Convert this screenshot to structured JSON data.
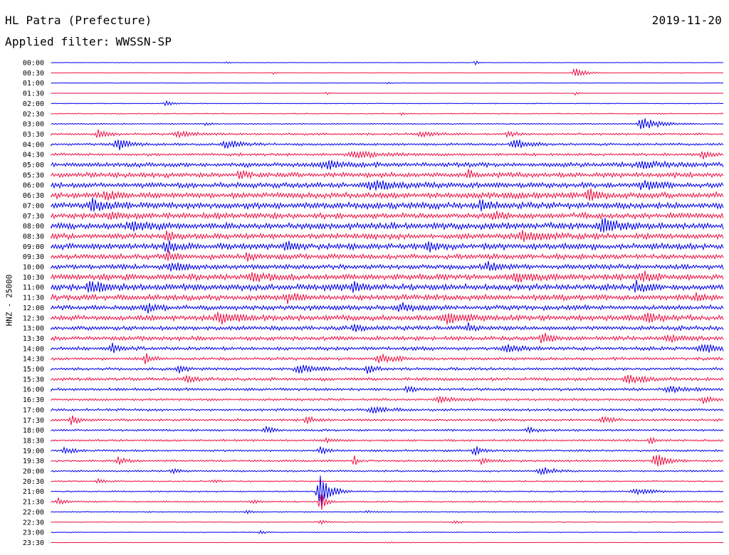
{
  "header": {
    "station": "HL Patra (Prefecture)",
    "date": "2019-11-20",
    "filter_label": "Applied filter:",
    "filter_value": "WWSSN-SP"
  },
  "axis": {
    "channel_label": "HNZ - 25000"
  },
  "colors": {
    "even_trace": "#0000ee",
    "odd_trace": "#ee1144",
    "background": "#ffffff"
  },
  "chart_data": {
    "type": "line",
    "title": "HL Patra (Prefecture)",
    "subtitle": "2019-11-20",
    "ylabel": "HNZ - 25000",
    "xlabel": "",
    "grid": false,
    "series": [
      {
        "label": "00:00",
        "noise": 0.3,
        "events": [
          {
            "x": 0.26,
            "a": 2,
            "w": 0.004
          },
          {
            "x": 0.63,
            "a": 4,
            "w": 0.004
          }
        ]
      },
      {
        "label": "00:30",
        "noise": 0.4,
        "events": [
          {
            "x": 0.78,
            "a": 7,
            "w": 0.012
          },
          {
            "x": 0.33,
            "a": 2,
            "w": 0.004
          }
        ]
      },
      {
        "label": "01:00",
        "noise": 0.3,
        "events": [
          {
            "x": 0.5,
            "a": 1.5,
            "w": 0.004
          }
        ]
      },
      {
        "label": "01:30",
        "noise": 0.3,
        "events": [
          {
            "x": 0.41,
            "a": 2,
            "w": 0.004
          },
          {
            "x": 0.78,
            "a": 3,
            "w": 0.004
          }
        ]
      },
      {
        "label": "02:00",
        "noise": 0.5,
        "events": [
          {
            "x": 0.17,
            "a": 4,
            "w": 0.008
          }
        ]
      },
      {
        "label": "02:30",
        "noise": 0.6,
        "events": [
          {
            "x": 0.52,
            "a": 2,
            "w": 0.004
          }
        ]
      },
      {
        "label": "03:00",
        "noise": 0.7,
        "events": [
          {
            "x": 0.23,
            "a": 2.5,
            "w": 0.006
          },
          {
            "x": 0.88,
            "a": 9,
            "w": 0.02
          }
        ]
      },
      {
        "label": "03:30",
        "noise": 1.2,
        "events": [
          {
            "x": 0.07,
            "a": 8,
            "w": 0.01
          },
          {
            "x": 0.19,
            "a": 4,
            "w": 0.02
          },
          {
            "x": 0.55,
            "a": 3,
            "w": 0.02
          },
          {
            "x": 0.68,
            "a": 4,
            "w": 0.01
          }
        ]
      },
      {
        "label": "04:00",
        "noise": 1.4,
        "events": [
          {
            "x": 0.1,
            "a": 8,
            "w": 0.015
          },
          {
            "x": 0.26,
            "a": 7,
            "w": 0.015
          },
          {
            "x": 0.69,
            "a": 8,
            "w": 0.015
          }
        ]
      },
      {
        "label": "04:30",
        "noise": 1.6,
        "events": [
          {
            "x": 0.45,
            "a": 5,
            "w": 0.03
          },
          {
            "x": 0.97,
            "a": 6,
            "w": 0.01
          }
        ]
      },
      {
        "label": "05:00",
        "noise": 2.6,
        "events": [
          {
            "x": 0.41,
            "a": 5,
            "w": 0.02
          },
          {
            "x": 0.88,
            "a": 5,
            "w": 0.02
          }
        ]
      },
      {
        "label": "05:30",
        "noise": 2.8,
        "events": [
          {
            "x": 0.28,
            "a": 6,
            "w": 0.008
          },
          {
            "x": 0.62,
            "a": 6,
            "w": 0.008
          }
        ]
      },
      {
        "label": "06:00",
        "noise": 3.0,
        "events": [
          {
            "x": 0.48,
            "a": 6,
            "w": 0.03
          },
          {
            "x": 0.88,
            "a": 6,
            "w": 0.02
          }
        ]
      },
      {
        "label": "06:30",
        "noise": 3.4,
        "events": [
          {
            "x": 0.08,
            "a": 7,
            "w": 0.01
          },
          {
            "x": 0.8,
            "a": 7,
            "w": 0.015
          }
        ]
      },
      {
        "label": "07:00",
        "noise": 3.6,
        "events": [
          {
            "x": 0.06,
            "a": 7,
            "w": 0.02
          },
          {
            "x": 0.64,
            "a": 7,
            "w": 0.01
          }
        ]
      },
      {
        "label": "07:30",
        "noise": 3.2,
        "events": [
          {
            "x": 0.09,
            "a": 6,
            "w": 0.015
          },
          {
            "x": 0.66,
            "a": 6,
            "w": 0.01
          }
        ]
      },
      {
        "label": "08:00",
        "noise": 3.6,
        "events": [
          {
            "x": 0.12,
            "a": 6,
            "w": 0.02
          },
          {
            "x": 0.82,
            "a": 8,
            "w": 0.02
          }
        ]
      },
      {
        "label": "08:30",
        "noise": 3.2,
        "events": [
          {
            "x": 0.17,
            "a": 7,
            "w": 0.008
          },
          {
            "x": 0.7,
            "a": 6,
            "w": 0.02
          }
        ]
      },
      {
        "label": "09:00",
        "noise": 3.4,
        "events": [
          {
            "x": 0.17,
            "a": 8,
            "w": 0.01
          },
          {
            "x": 0.35,
            "a": 8,
            "w": 0.01
          },
          {
            "x": 0.56,
            "a": 6,
            "w": 0.01
          }
        ]
      },
      {
        "label": "09:30",
        "noise": 3.0,
        "events": [
          {
            "x": 0.17,
            "a": 8,
            "w": 0.008
          },
          {
            "x": 0.29,
            "a": 5,
            "w": 0.01
          }
        ]
      },
      {
        "label": "10:00",
        "noise": 2.8,
        "events": [
          {
            "x": 0.18,
            "a": 5,
            "w": 0.02
          },
          {
            "x": 0.65,
            "a": 8,
            "w": 0.01
          }
        ]
      },
      {
        "label": "10:30",
        "noise": 3.4,
        "events": [
          {
            "x": 0.3,
            "a": 5,
            "w": 0.02
          },
          {
            "x": 0.69,
            "a": 6,
            "w": 0.02
          },
          {
            "x": 0.88,
            "a": 9,
            "w": 0.01
          }
        ]
      },
      {
        "label": "11:00",
        "noise": 3.6,
        "events": [
          {
            "x": 0.06,
            "a": 7,
            "w": 0.02
          },
          {
            "x": 0.45,
            "a": 6,
            "w": 0.01
          },
          {
            "x": 0.87,
            "a": 8,
            "w": 0.01
          }
        ]
      },
      {
        "label": "11:30",
        "noise": 3.2,
        "events": [
          {
            "x": 0.35,
            "a": 6,
            "w": 0.015
          },
          {
            "x": 0.96,
            "a": 6,
            "w": 0.01
          }
        ]
      },
      {
        "label": "12:00",
        "noise": 2.8,
        "events": [
          {
            "x": 0.14,
            "a": 7,
            "w": 0.01
          },
          {
            "x": 0.52,
            "a": 5,
            "w": 0.02
          }
        ]
      },
      {
        "label": "12:30",
        "noise": 3.0,
        "events": [
          {
            "x": 0.25,
            "a": 8,
            "w": 0.02
          },
          {
            "x": 0.59,
            "a": 7,
            "w": 0.02
          },
          {
            "x": 0.89,
            "a": 5,
            "w": 0.02
          }
        ]
      },
      {
        "label": "13:00",
        "noise": 2.4,
        "events": [
          {
            "x": 0.45,
            "a": 7,
            "w": 0.01
          },
          {
            "x": 0.62,
            "a": 6,
            "w": 0.01
          }
        ]
      },
      {
        "label": "13:30",
        "noise": 2.4,
        "events": [
          {
            "x": 0.73,
            "a": 9,
            "w": 0.01
          },
          {
            "x": 0.92,
            "a": 4,
            "w": 0.02
          }
        ]
      },
      {
        "label": "14:00",
        "noise": 2.0,
        "events": [
          {
            "x": 0.09,
            "a": 7,
            "w": 0.01
          },
          {
            "x": 0.68,
            "a": 5,
            "w": 0.02
          },
          {
            "x": 0.97,
            "a": 6,
            "w": 0.02
          }
        ]
      },
      {
        "label": "14:30",
        "noise": 1.6,
        "events": [
          {
            "x": 0.14,
            "a": 8,
            "w": 0.008
          },
          {
            "x": 0.49,
            "a": 6,
            "w": 0.02
          }
        ]
      },
      {
        "label": "15:00",
        "noise": 1.6,
        "events": [
          {
            "x": 0.19,
            "a": 5,
            "w": 0.01
          },
          {
            "x": 0.37,
            "a": 6,
            "w": 0.02
          },
          {
            "x": 0.47,
            "a": 7,
            "w": 0.01
          }
        ]
      },
      {
        "label": "15:30",
        "noise": 1.8,
        "events": [
          {
            "x": 0.2,
            "a": 5,
            "w": 0.01
          },
          {
            "x": 0.86,
            "a": 6,
            "w": 0.02
          }
        ]
      },
      {
        "label": "16:00",
        "noise": 1.6,
        "events": [
          {
            "x": 0.53,
            "a": 5,
            "w": 0.01
          },
          {
            "x": 0.92,
            "a": 5,
            "w": 0.02
          }
        ]
      },
      {
        "label": "16:30",
        "noise": 1.4,
        "events": [
          {
            "x": 0.58,
            "a": 4,
            "w": 0.02
          },
          {
            "x": 0.97,
            "a": 5,
            "w": 0.01
          }
        ]
      },
      {
        "label": "17:00",
        "noise": 1.4,
        "events": [
          {
            "x": 0.48,
            "a": 4,
            "w": 0.02
          }
        ]
      },
      {
        "label": "17:30",
        "noise": 1.4,
        "events": [
          {
            "x": 0.03,
            "a": 6,
            "w": 0.01
          },
          {
            "x": 0.38,
            "a": 5,
            "w": 0.01
          },
          {
            "x": 0.82,
            "a": 6,
            "w": 0.01
          }
        ]
      },
      {
        "label": "18:00",
        "noise": 1.2,
        "events": [
          {
            "x": 0.32,
            "a": 5,
            "w": 0.01
          },
          {
            "x": 0.71,
            "a": 5,
            "w": 0.01
          }
        ]
      },
      {
        "label": "18:30",
        "noise": 1.2,
        "events": [
          {
            "x": 0.41,
            "a": 3,
            "w": 0.01
          },
          {
            "x": 0.89,
            "a": 6,
            "w": 0.006
          }
        ]
      },
      {
        "label": "19:00",
        "noise": 1.2,
        "events": [
          {
            "x": 0.02,
            "a": 6,
            "w": 0.01
          },
          {
            "x": 0.4,
            "a": 5,
            "w": 0.01
          },
          {
            "x": 0.63,
            "a": 7,
            "w": 0.01
          }
        ]
      },
      {
        "label": "19:30",
        "noise": 1.2,
        "events": [
          {
            "x": 0.1,
            "a": 6,
            "w": 0.01
          },
          {
            "x": 0.45,
            "a": 9,
            "w": 0.004
          },
          {
            "x": 0.64,
            "a": 5,
            "w": 0.01
          },
          {
            "x": 0.9,
            "a": 14,
            "w": 0.012
          }
        ]
      },
      {
        "label": "20:00",
        "noise": 1.0,
        "events": [
          {
            "x": 0.18,
            "a": 4,
            "w": 0.01
          },
          {
            "x": 0.73,
            "a": 6,
            "w": 0.015
          }
        ]
      },
      {
        "label": "20:30",
        "noise": 0.8,
        "events": [
          {
            "x": 0.07,
            "a": 3,
            "w": 0.01
          },
          {
            "x": 0.24,
            "a": 2,
            "w": 0.01
          }
        ]
      },
      {
        "label": "21:00",
        "noise": 0.8,
        "events": [
          {
            "x": 0.4,
            "a": 28,
            "w": 0.012
          },
          {
            "x": 0.87,
            "a": 4,
            "w": 0.02
          }
        ]
      },
      {
        "label": "21:30",
        "noise": 0.9,
        "events": [
          {
            "x": 0.01,
            "a": 5,
            "w": 0.008
          },
          {
            "x": 0.3,
            "a": 3,
            "w": 0.008
          },
          {
            "x": 0.4,
            "a": 18,
            "w": 0.006
          }
        ]
      },
      {
        "label": "22:00",
        "noise": 0.6,
        "events": [
          {
            "x": 0.29,
            "a": 3,
            "w": 0.006
          },
          {
            "x": 0.47,
            "a": 2,
            "w": 0.01
          }
        ]
      },
      {
        "label": "22:30",
        "noise": 0.5,
        "events": [
          {
            "x": 0.4,
            "a": 3,
            "w": 0.01
          },
          {
            "x": 0.6,
            "a": 2,
            "w": 0.01
          }
        ]
      },
      {
        "label": "23:00",
        "noise": 0.5,
        "events": [
          {
            "x": 0.31,
            "a": 3,
            "w": 0.006
          }
        ]
      },
      {
        "label": "23:30",
        "noise": 0.3,
        "events": [
          {
            "x": 0.5,
            "a": 1,
            "w": 0.01
          }
        ]
      }
    ]
  }
}
